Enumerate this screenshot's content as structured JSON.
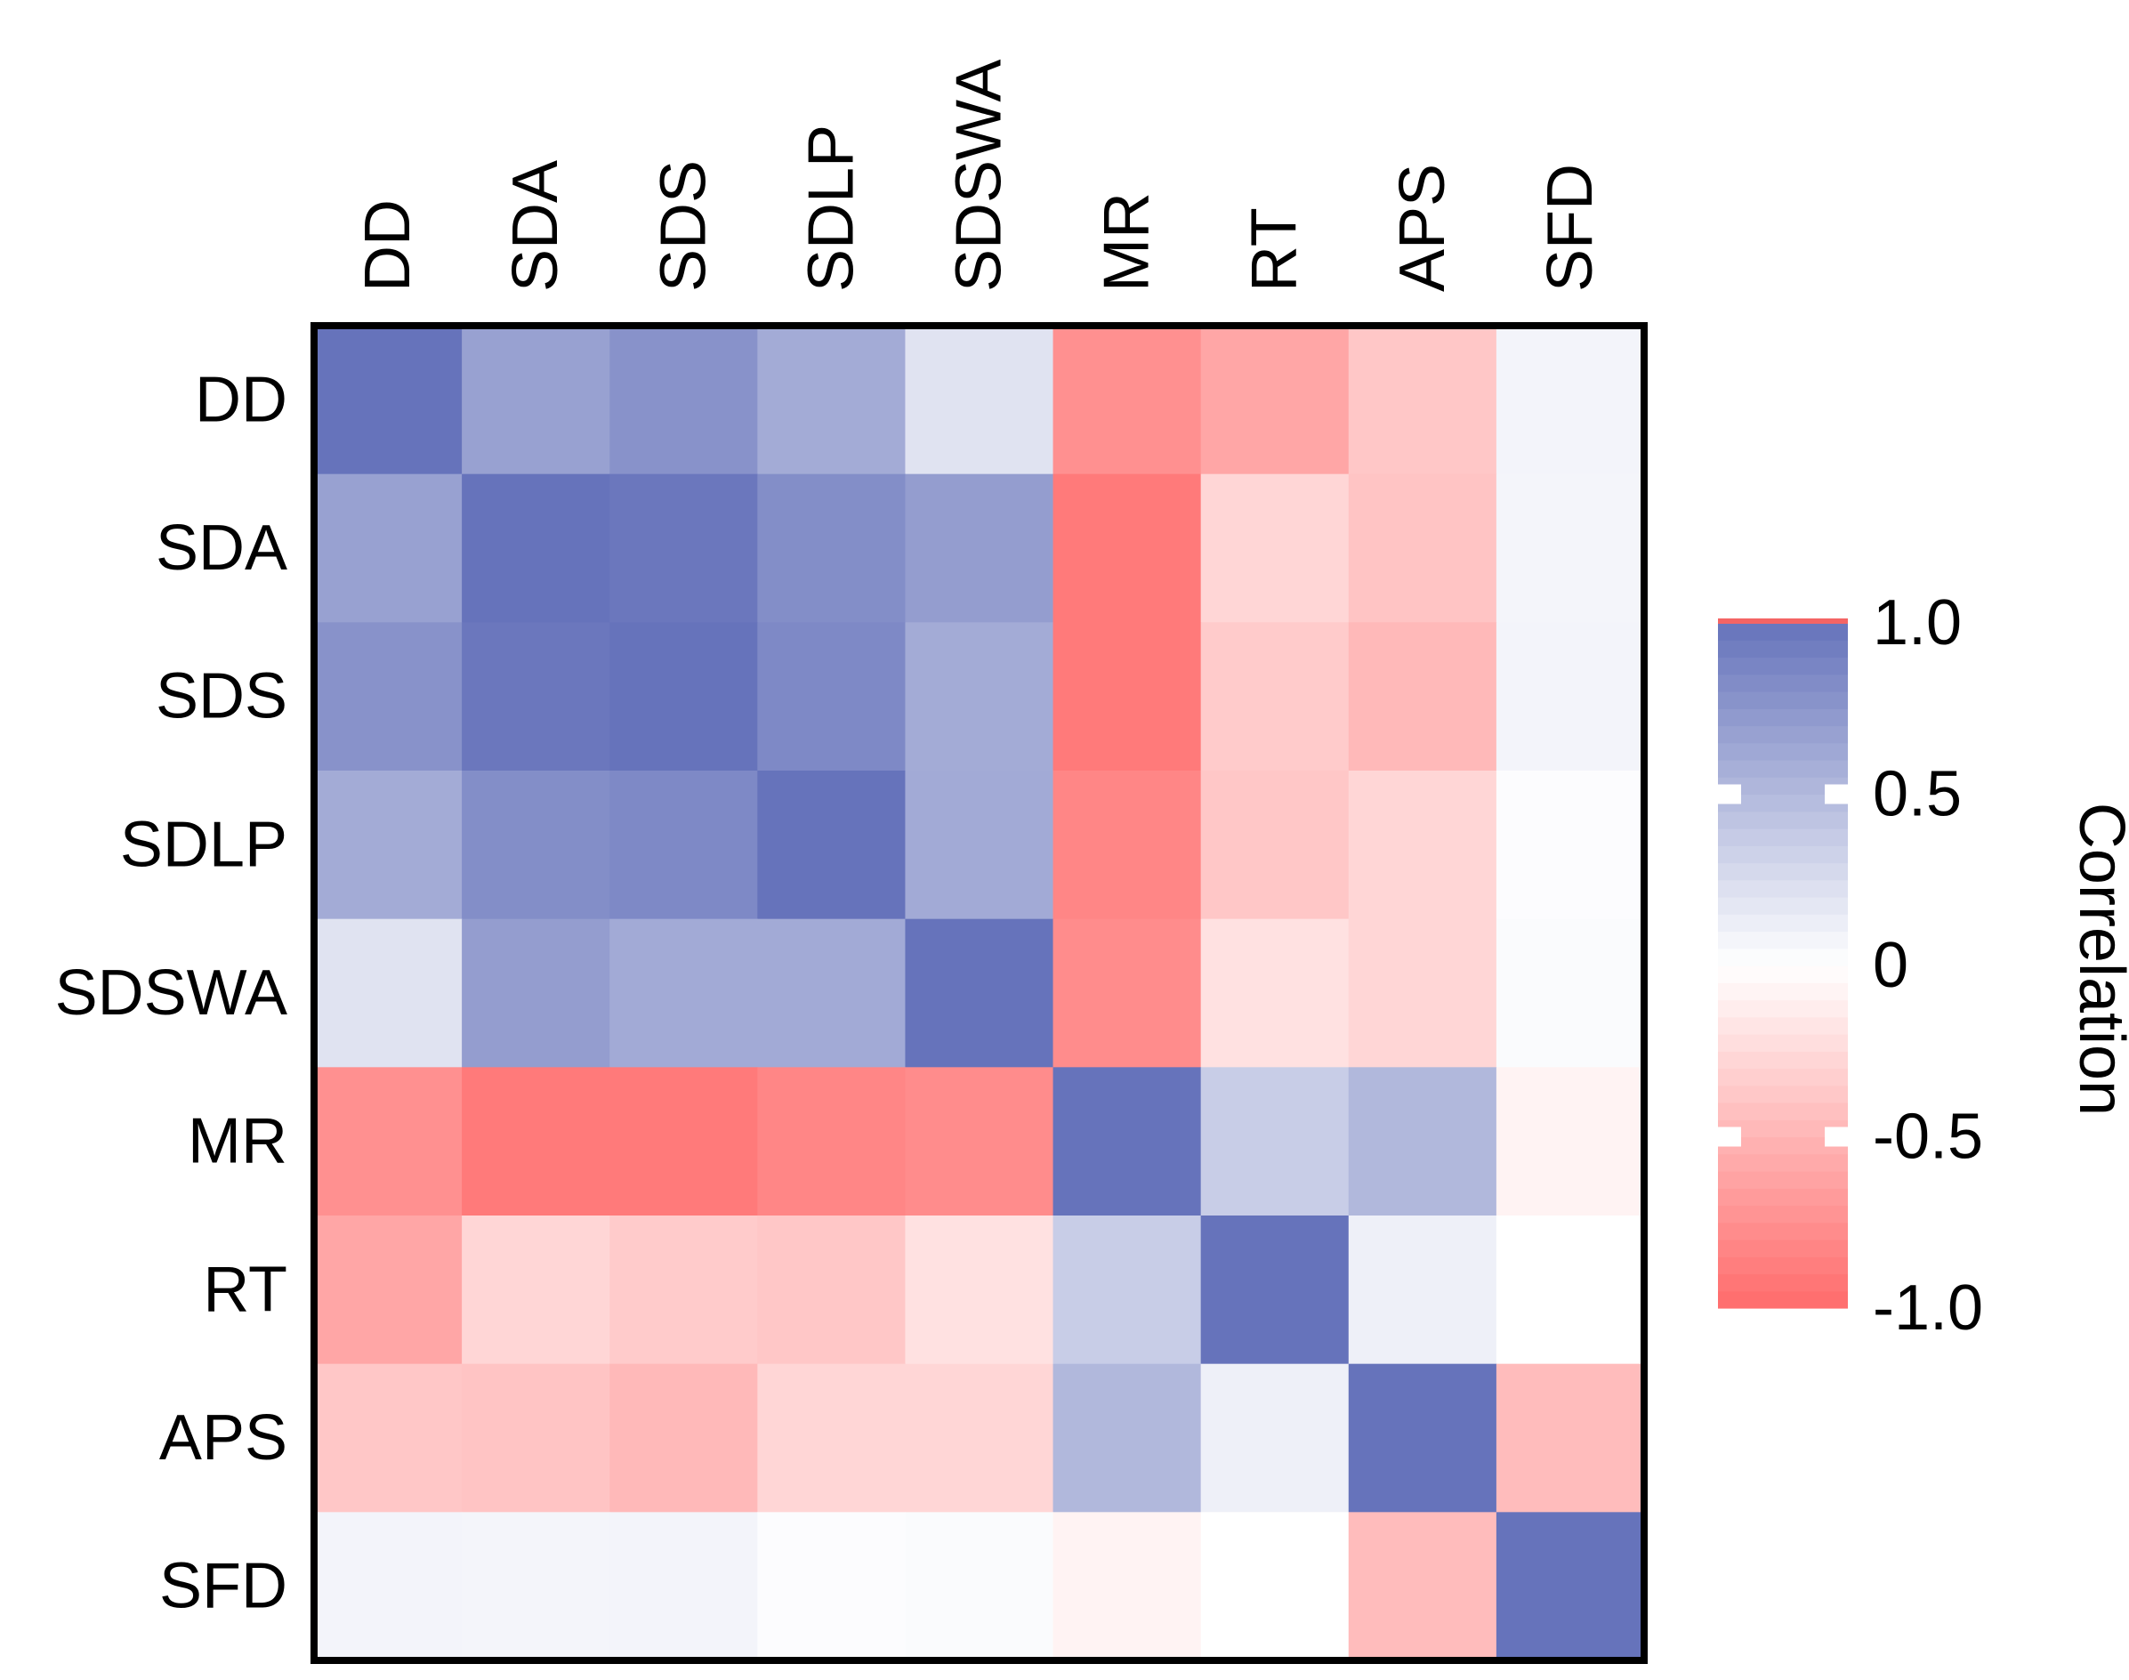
{
  "chart_data": {
    "type": "heatmap",
    "title": "",
    "row_labels": [
      "DD",
      "SDA",
      "SDS",
      "SDLP",
      "SDSWA",
      "MR",
      "RT",
      "APS",
      "SFD"
    ],
    "col_labels": [
      "DD",
      "SDA",
      "SDS",
      "SDLP",
      "SDSWA",
      "MR",
      "RT",
      "APS",
      "SFD"
    ],
    "values": [
      [
        1.0,
        0.67,
        0.78,
        0.6,
        0.2,
        -0.75,
        -0.6,
        -0.38,
        0.08
      ],
      [
        0.67,
        1.0,
        0.97,
        0.81,
        0.7,
        -0.9,
        -0.28,
        -0.4,
        0.07
      ],
      [
        0.78,
        0.97,
        1.0,
        0.84,
        0.6,
        -0.9,
        -0.35,
        -0.47,
        0.08
      ],
      [
        0.6,
        0.81,
        0.84,
        1.0,
        0.61,
        -0.82,
        -0.38,
        -0.28,
        0.02
      ],
      [
        0.2,
        0.7,
        0.61,
        0.61,
        1.0,
        -0.78,
        -0.2,
        -0.28,
        0.03
      ],
      [
        -0.75,
        -0.9,
        -0.9,
        -0.82,
        -0.78,
        1.0,
        0.36,
        0.51,
        -0.08
      ],
      [
        -0.6,
        -0.28,
        -0.35,
        -0.38,
        -0.2,
        0.36,
        1.0,
        0.11,
        0.0
      ],
      [
        -0.38,
        -0.4,
        -0.47,
        -0.28,
        -0.28,
        0.51,
        0.11,
        1.0,
        -0.45
      ],
      [
        0.08,
        0.07,
        0.08,
        0.02,
        0.03,
        -0.08,
        0.0,
        -0.45,
        1.0
      ]
    ],
    "colorbar": {
      "title": "Correlation",
      "range": [
        -1.0,
        1.0
      ],
      "ticks": [
        {
          "value": 1.0,
          "label": "1.0"
        },
        {
          "value": 0.5,
          "label": "0.5"
        },
        {
          "value": 0,
          "label": "0"
        },
        {
          "value": -0.5,
          "label": "-0.5"
        },
        {
          "value": -1.0,
          "label": "-1.0"
        }
      ],
      "color_positive": "#6673bb",
      "color_zero": "#ffffff",
      "color_negative": "#ff6b6b",
      "color_top_cap": "#f46464"
    },
    "frame_color": "#000000"
  }
}
